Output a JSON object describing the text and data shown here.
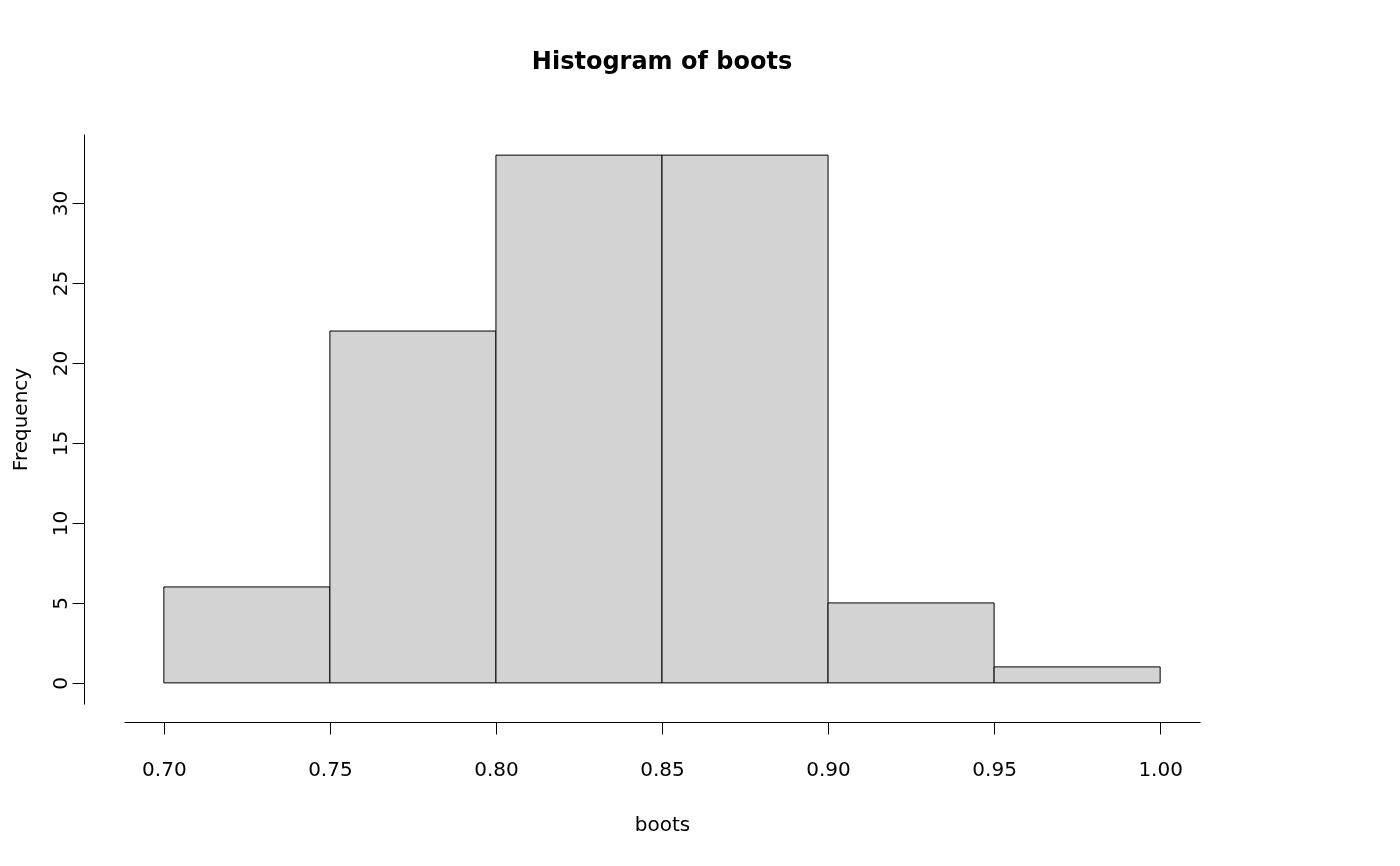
{
  "chart_data": {
    "type": "histogram",
    "title": "Histogram of boots",
    "xlabel": "boots",
    "ylabel": "Frequency",
    "bins": [
      0.7,
      0.75,
      0.8,
      0.85,
      0.9,
      0.95,
      1.0
    ],
    "values": [
      6,
      22,
      33,
      33,
      5,
      1
    ],
    "color": "#d3d3d3",
    "xlim": [
      0.688,
      1.012
    ],
    "xticks": [
      {
        "value": 0.7,
        "label": "0.70"
      },
      {
        "value": 0.75,
        "label": "0.75"
      },
      {
        "value": 0.8,
        "label": "0.80"
      },
      {
        "value": 0.85,
        "label": "0.85"
      },
      {
        "value": 0.9,
        "label": "0.90"
      },
      {
        "value": 0.95,
        "label": "0.95"
      },
      {
        "value": 1.0,
        "label": "1.00"
      }
    ],
    "ylim": [
      -1.32,
      34.32
    ],
    "yticks": [
      0,
      5,
      10,
      15,
      20,
      25,
      30
    ]
  }
}
